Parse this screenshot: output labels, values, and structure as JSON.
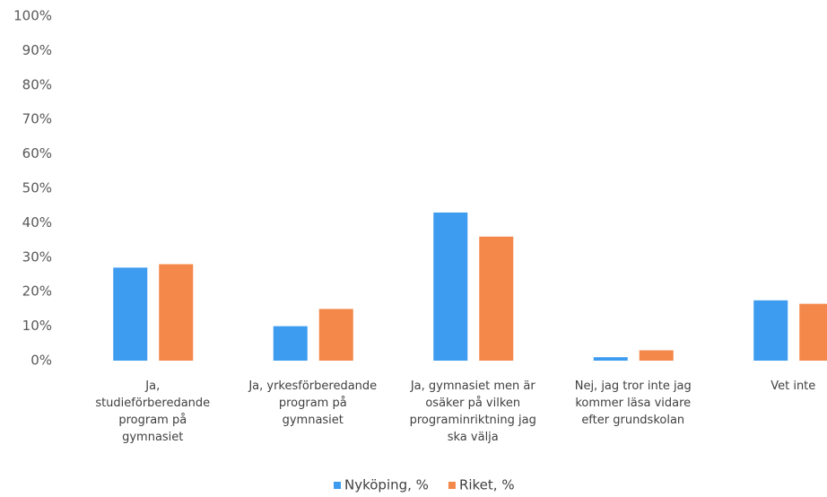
{
  "chart_data": {
    "type": "bar",
    "categories": [
      "Ja,\nstudieförberedande\nprogram på\ngymnasiet",
      "Ja, yrkesförberedande\nprogram på\ngymnasiet",
      "Ja, gymnasiet men är\nosäker på vilken\nprograminriktning jag\nska välja",
      "Nej, jag tror inte jag\nkommer läsa vidare\nefter grundskolan",
      "Vet inte"
    ],
    "series": [
      {
        "name": "Nyköping, %",
        "color": "#3d9cf0",
        "values": [
          27,
          10,
          43,
          1,
          17.5
        ]
      },
      {
        "name": "Riket, %",
        "color": "#f4884a",
        "values": [
          28,
          15,
          36,
          3,
          16.5
        ]
      }
    ],
    "ylim": [
      0,
      100
    ],
    "yticks": [
      {
        "value": 0,
        "label": "0%"
      },
      {
        "value": 10,
        "label": "10%"
      },
      {
        "value": 20,
        "label": "20%"
      },
      {
        "value": 30,
        "label": "30%"
      },
      {
        "value": 40,
        "label": "40%"
      },
      {
        "value": 50,
        "label": "50%"
      },
      {
        "value": 60,
        "label": "60%"
      },
      {
        "value": 70,
        "label": "70%"
      },
      {
        "value": 80,
        "label": "80%"
      },
      {
        "value": 90,
        "label": "90%"
      },
      {
        "value": 100,
        "label": "100%"
      }
    ],
    "legend": "bottom"
  }
}
